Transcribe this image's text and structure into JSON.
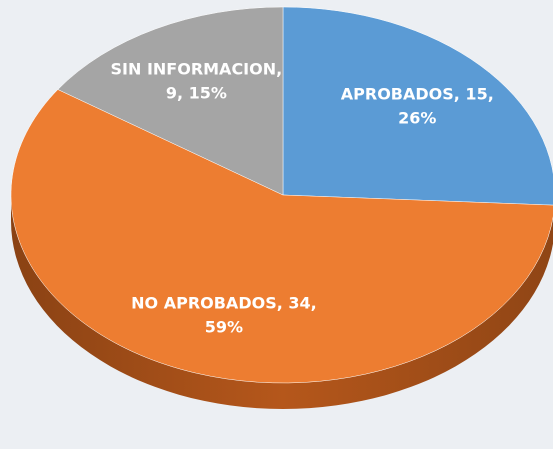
{
  "chart_data": {
    "type": "pie3d",
    "values": [
      15,
      34,
      9
    ],
    "value_labels": [
      [
        "APROBADOS, 15,",
        "26%"
      ],
      [
        "NO APROBADOS, 34,",
        "59%"
      ],
      [
        "SIN INFORMACION,",
        "9, 15%"
      ]
    ],
    "colors": [
      "#5b9bd5",
      "#ed7d31",
      "#a5a5a5"
    ]
  }
}
